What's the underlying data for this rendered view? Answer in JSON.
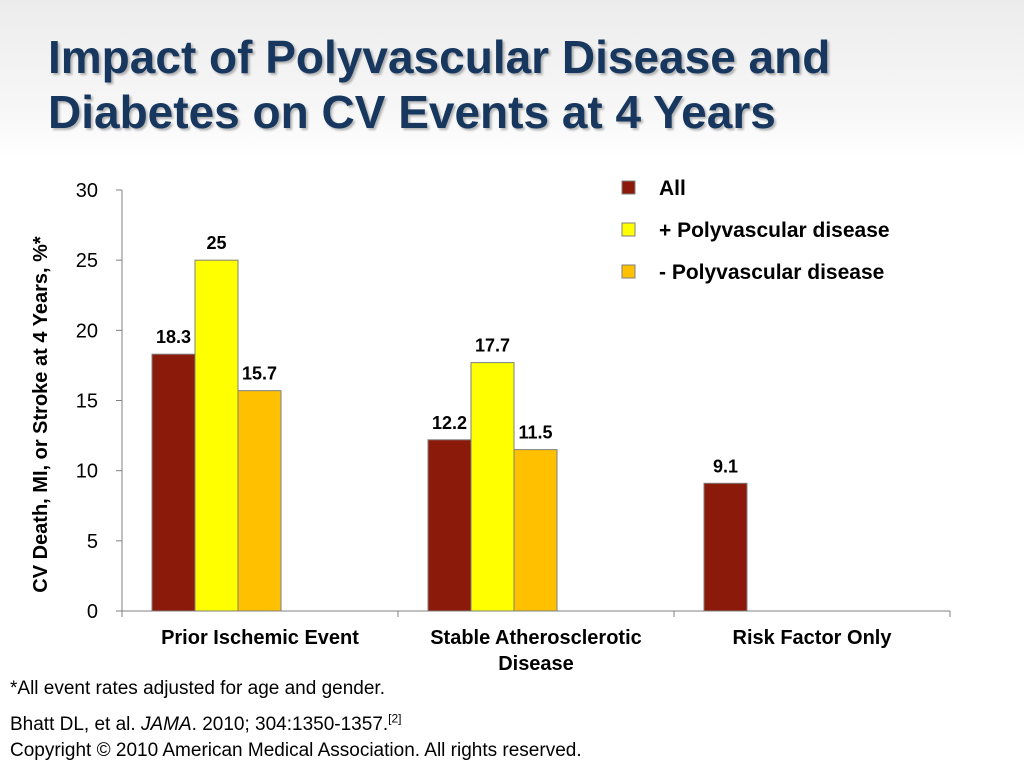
{
  "slide": {
    "title_line1": "Impact of Polyvascular Disease and",
    "title_line2": "Diabetes on CV Events at 4 Years",
    "footnote": "*All event rates adjusted for age and gender.",
    "citation_authors": "Bhatt DL, et al. ",
    "citation_journal": "JAMA",
    "citation_details": ". 2010; 304:1350-1357.",
    "citation_ref": "[2]",
    "copyright": "Copyright © 2010 American Medical Association. All rights reserved."
  },
  "chart_data": {
    "type": "bar",
    "ylabel": "CV Death, MI, or Stroke at 4 Years, %*",
    "xlabel": "",
    "ylim": [
      0,
      30
    ],
    "yticks": [
      0,
      5,
      10,
      15,
      20,
      25,
      30
    ],
    "categories": [
      [
        "Prior Ischemic Event"
      ],
      [
        "Stable Atherosclerotic",
        "Disease"
      ],
      [
        "Risk Factor Only"
      ]
    ],
    "series": [
      {
        "name": "All",
        "color": "#8b1a0a",
        "values": [
          18.3,
          12.2,
          9.1
        ]
      },
      {
        "name": "+ Polyvascular disease",
        "color": "#ffff00",
        "values": [
          25,
          17.7,
          null
        ]
      },
      {
        "name": "- Polyvascular disease",
        "color": "#ffc000",
        "values": [
          15.7,
          11.5,
          null
        ]
      }
    ],
    "legend_position": "top-right",
    "grid": false
  }
}
